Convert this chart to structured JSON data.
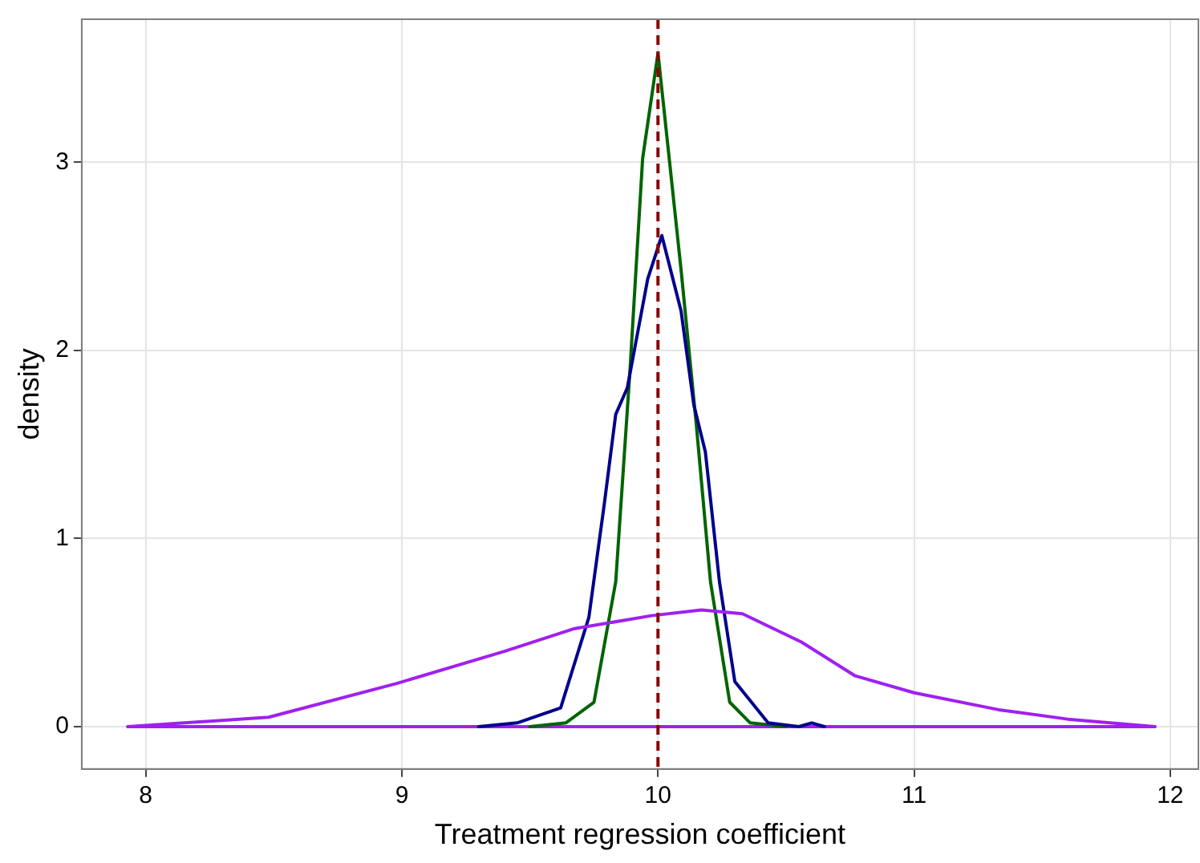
{
  "chart_data": {
    "type": "line",
    "xlabel": "Treatment regression coefficient",
    "ylabel": "density",
    "xlim": [
      7.75,
      12.11
    ],
    "ylim": [
      -0.225,
      3.76
    ],
    "xticks": [
      8,
      9,
      10,
      11,
      12
    ],
    "yticks": [
      0,
      1,
      2,
      3
    ],
    "grid": true,
    "legend": false,
    "marker": "none",
    "line_style": "solid",
    "series": [
      {
        "color": "#a020f0",
        "x": [
          7.93,
          8.48,
          8.98,
          9.4,
          9.67,
          9.975,
          10.17,
          10.33,
          10.56,
          10.77,
          11.0,
          11.33,
          11.6,
          11.94
        ],
        "values": [
          0,
          0.05,
          0.23,
          0.4,
          0.52,
          0.59,
          0.62,
          0.6,
          0.45,
          0.27,
          0.18,
          0.09,
          0.04,
          0
        ]
      },
      {
        "color": "#00008b",
        "x": [
          9.3,
          9.45,
          9.62,
          9.73,
          9.79,
          9.835,
          9.88,
          9.96,
          10.015,
          10.09,
          10.14,
          10.185,
          10.24,
          10.3,
          10.43,
          10.55,
          10.6,
          10.65
        ],
        "values": [
          0,
          0.02,
          0.1,
          0.58,
          1.18,
          1.66,
          1.8,
          2.38,
          2.61,
          2.21,
          1.71,
          1.46,
          0.77,
          0.24,
          0.02,
          0,
          0.02,
          0
        ]
      },
      {
        "color": "#006400",
        "x": [
          9.5,
          9.64,
          9.75,
          9.835,
          9.89,
          9.94,
          10.0,
          10.09,
          10.15,
          10.205,
          10.28,
          10.36,
          10.5
        ],
        "values": [
          0,
          0.02,
          0.13,
          0.77,
          1.88,
          3.02,
          3.58,
          2.43,
          1.6,
          0.77,
          0.13,
          0.02,
          0
        ]
      },
      {
        "color": "#a020f0",
        "x": [
          7.93,
          11.94
        ],
        "values": [
          0,
          0
        ]
      }
    ],
    "ref_lines": [
      {
        "axis": "x",
        "value": 10,
        "color": "#8b0000",
        "line_style": "dashed"
      }
    ]
  }
}
